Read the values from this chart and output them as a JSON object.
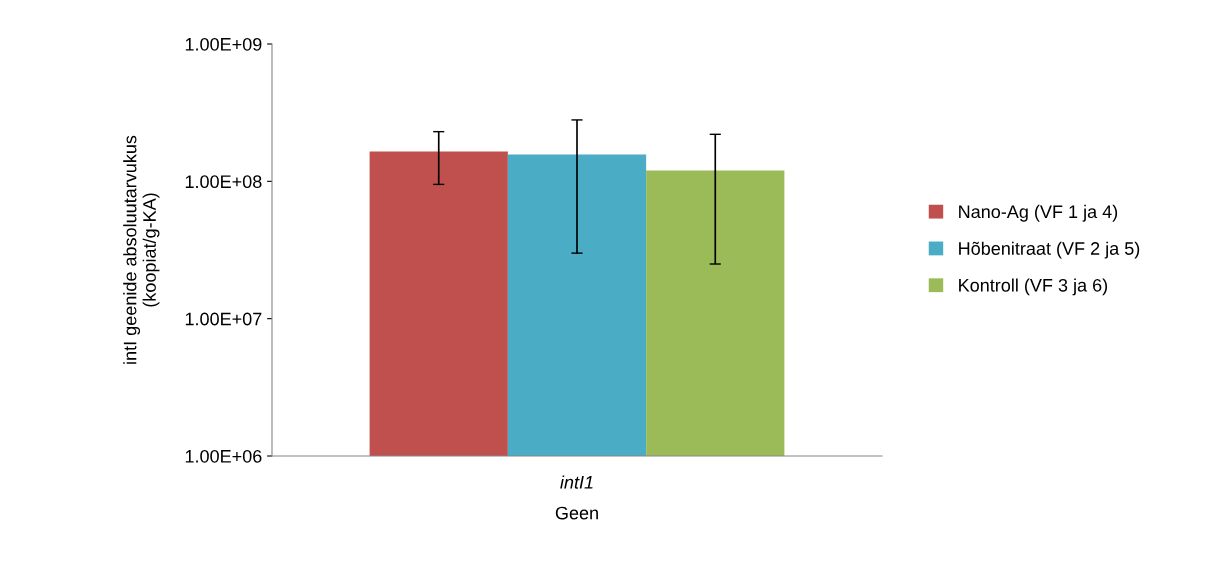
{
  "chart_data": {
    "type": "bar",
    "xlabel": "Geen",
    "ylabel": "intI geenide absoluutarvukus\n(koopiat/g-KA)",
    "categories": [
      "intI1"
    ],
    "series": [
      {
        "name": "Nano-Ag (VF 1 ja 4)",
        "color": "#c0504d",
        "values": [
          165000000.0
        ],
        "errors": [
          [
            95000000.0,
            230000000.0
          ]
        ]
      },
      {
        "name": "Hõbenitraat (VF 2 ja 5)",
        "color": "#4bacc6",
        "values": [
          157000000.0
        ],
        "errors": [
          [
            30000000.0,
            280000000.0
          ]
        ]
      },
      {
        "name": "Kontroll (VF 3 ja 6)",
        "color": "#9bbb59",
        "values": [
          120000000.0
        ],
        "errors": [
          [
            25000000.0,
            220000000.0
          ]
        ]
      }
    ],
    "log": true,
    "ylim": [
      1000000.0,
      1000000000.0
    ],
    "yticks": [
      {
        "value": 1000000.0,
        "label": "1.00E+06"
      },
      {
        "value": 10000000.0,
        "label": "1.00E+07"
      },
      {
        "value": 100000000.0,
        "label": "1.00E+08"
      },
      {
        "value": 1000000000.0,
        "label": "1.00E+09"
      }
    ],
    "grid": false,
    "legend": "right"
  }
}
